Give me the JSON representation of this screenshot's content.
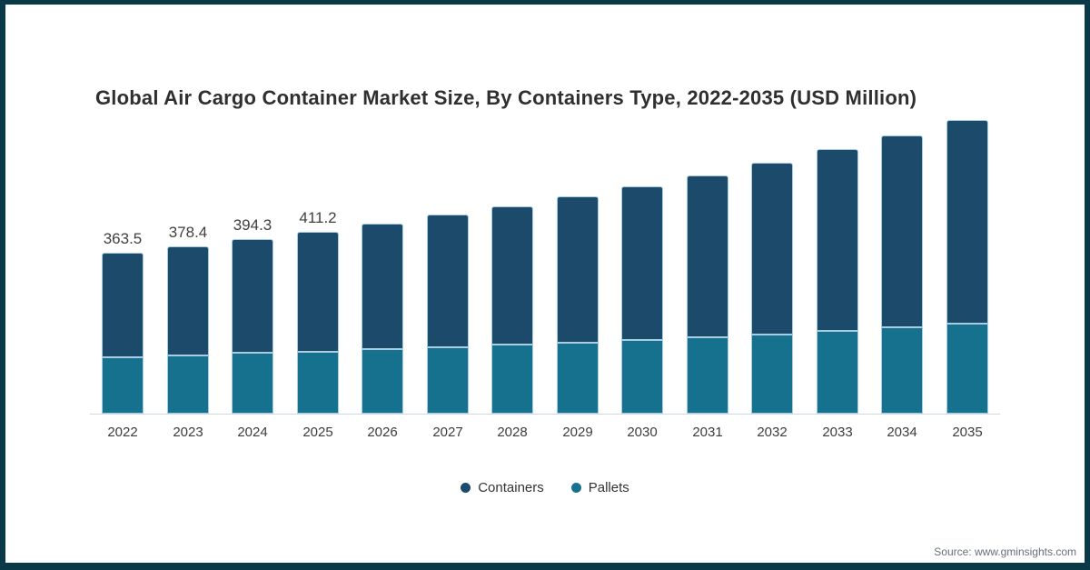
{
  "page": {
    "source_note": "Source: www.gminsights.com",
    "frame_color": "#0a3a47"
  },
  "chart_data": {
    "type": "bar",
    "stacked": true,
    "title": "Global Air Cargo Container Market Size, By Containers Type, 2022-2035 (USD Million)",
    "unit": "USD Million",
    "categories": [
      "2022",
      "2023",
      "2024",
      "2025",
      "2026",
      "2027",
      "2028",
      "2029",
      "2030",
      "2031",
      "2032",
      "2033",
      "2034",
      "2035"
    ],
    "series": [
      {
        "name": "Containers",
        "color": "#1b4a6a",
        "values": [
          236.0,
          246.4,
          257.3,
          271.2,
          285.0,
          299.0,
          314.0,
          331.0,
          348.5,
          368.0,
          388.0,
          410.0,
          434.0,
          461.0
        ]
      },
      {
        "name": "Pallets",
        "color": "#16718f",
        "values": [
          127.5,
          132.0,
          137.0,
          140.0,
          146.0,
          151.0,
          156.0,
          161.0,
          166.5,
          172.0,
          180.0,
          188.0,
          196.0,
          204.0
        ]
      }
    ],
    "stacked_bottom_to_top": [
      "Pallets",
      "Containers"
    ],
    "totals": [
      363.5,
      378.4,
      394.3,
      411.2,
      431,
      450,
      470,
      492,
      515,
      540,
      568,
      598,
      630,
      665
    ],
    "bar_labels": [
      "363.5",
      "378.4",
      "394.3",
      "411.2",
      null,
      null,
      null,
      null,
      null,
      null,
      null,
      null,
      null,
      null
    ],
    "legend_position": "bottom",
    "grid": false,
    "value_axis": "hidden",
    "ylim": [
      0,
      700
    ],
    "bar_stroke_color": "#a9cde0"
  }
}
